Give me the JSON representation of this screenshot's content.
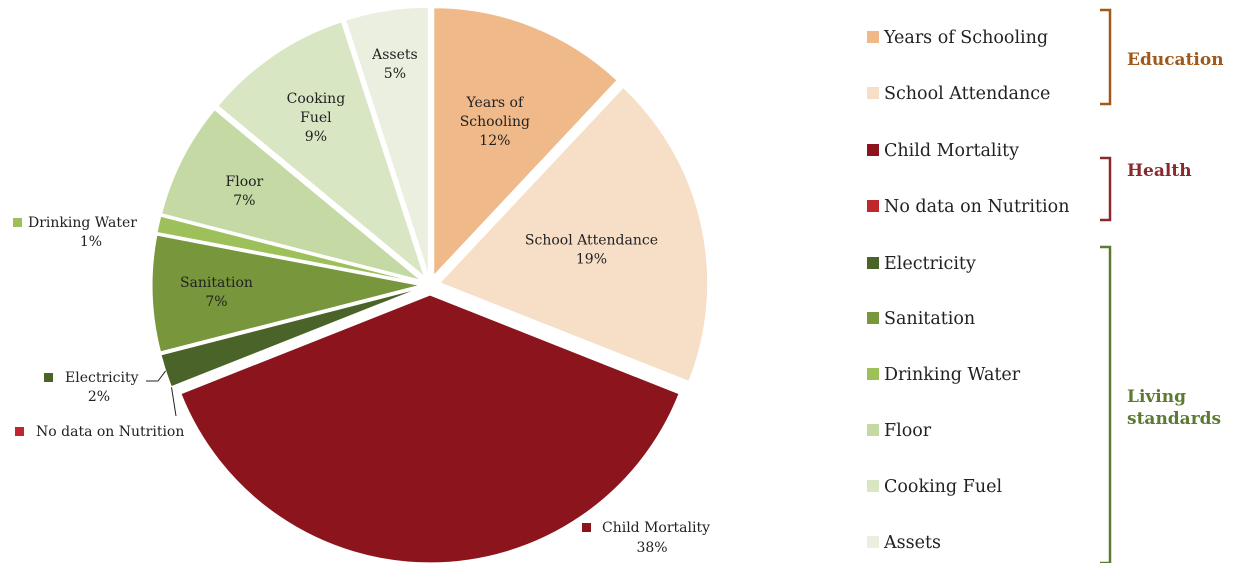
{
  "chart_data": {
    "type": "pie",
    "title": "",
    "slices": [
      {
        "label": "Years of Schooling",
        "value": 12,
        "display": "12%",
        "color": "#f0b98a",
        "group": "Education"
      },
      {
        "label": "School Attendance",
        "value": 19,
        "display": "19%",
        "color": "#f6dec7",
        "group": "Education"
      },
      {
        "label": "Child Mortality",
        "value": 38,
        "display": "38%",
        "color": "#8c141d",
        "group": "Health"
      },
      {
        "label": "No data on Nutrition",
        "value": 0,
        "display": "",
        "color": "#c0272d",
        "group": "Health"
      },
      {
        "label": "Electricity",
        "value": 2,
        "display": "2%",
        "color": "#4a6328",
        "group": "Living standards"
      },
      {
        "label": "Sanitation",
        "value": 7,
        "display": "7%",
        "color": "#78963c",
        "group": "Living standards"
      },
      {
        "label": "Drinking Water",
        "value": 1,
        "display": "1%",
        "color": "#9dc05a",
        "group": "Living standards"
      },
      {
        "label": "Floor",
        "value": 7,
        "display": "7%",
        "color": "#c4d9a3",
        "group": "Living standards"
      },
      {
        "label": "Cooking Fuel",
        "value": 9,
        "display": "9%",
        "color": "#d9e6c3",
        "group": "Living standards"
      },
      {
        "label": "Assets",
        "value": 5,
        "display": "5%",
        "color": "#ebefdf",
        "group": "Living standards"
      }
    ],
    "legend": {
      "placement": "right",
      "groups": [
        {
          "name": "Education",
          "color": "#a0581b",
          "items": [
            "Years of Schooling",
            "School Attendance"
          ]
        },
        {
          "name": "Health",
          "color": "#8a2a2f",
          "items": [
            "Child Mortality",
            "No data on Nutrition"
          ]
        },
        {
          "name": "Living standards",
          "color": "#5d7a33",
          "items": [
            "Electricity",
            "Sanitation",
            "Drinking Water",
            "Floor",
            "Cooking Fuel",
            "Assets"
          ]
        }
      ]
    }
  }
}
